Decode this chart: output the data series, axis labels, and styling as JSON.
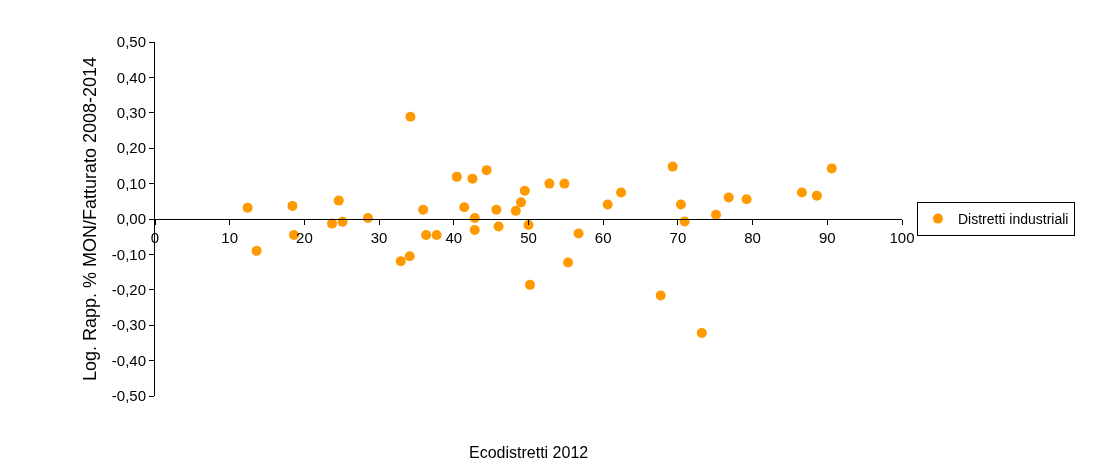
{
  "chart_data": {
    "type": "scatter",
    "xlabel": "Ecodistretti 2012",
    "ylabel": "Log. Rapp. % MON/Fatturato 2008-2014",
    "xlim": [
      0,
      100
    ],
    "xticks": [
      0,
      10,
      20,
      30,
      40,
      50,
      60,
      70,
      80,
      90,
      100
    ],
    "ylim": [
      -0.5,
      0.5
    ],
    "yticks": [
      {
        "value": -0.5,
        "label": "-0,50"
      },
      {
        "value": -0.4,
        "label": "-0,40"
      },
      {
        "value": -0.3,
        "label": "-0,30"
      },
      {
        "value": -0.2,
        "label": "-0,20"
      },
      {
        "value": -0.1,
        "label": "-0,10"
      },
      {
        "value": 0,
        "label": "0,00"
      },
      {
        "value": 0.1,
        "label": "0,10"
      },
      {
        "value": 0.2,
        "label": "0,20"
      },
      {
        "value": 0.3,
        "label": "0,30"
      },
      {
        "value": 0.4,
        "label": "0,40"
      },
      {
        "value": 0.5,
        "label": "0,50"
      }
    ],
    "grid": false,
    "legend": "right",
    "marker": "circle",
    "series": [
      {
        "name": "Distretti industriali",
        "color": "#ff9900",
        "x": [
          12.4,
          13.6,
          18.4,
          18.6,
          24.6,
          23.7,
          25.1,
          28.5,
          34.2,
          35.9,
          36.3,
          37.7,
          32.9,
          34.1,
          40.4,
          42.5,
          44.4,
          41.4,
          42.8,
          42.8,
          45.7,
          46.0,
          48.3,
          49.0,
          49.5,
          50.0,
          50.2,
          52.8,
          54.8,
          55.3,
          56.7,
          60.6,
          62.4,
          67.7,
          69.3,
          70.4,
          70.9,
          73.2,
          75.1,
          76.8,
          79.2,
          86.6,
          88.6,
          90.6
        ],
        "values": [
          0.032,
          -0.09,
          0.037,
          -0.045,
          0.052,
          -0.013,
          -0.008,
          0.003,
          0.289,
          0.026,
          -0.045,
          -0.045,
          -0.119,
          -0.105,
          0.119,
          0.114,
          0.138,
          0.033,
          0.003,
          -0.031,
          0.026,
          -0.021,
          0.023,
          0.047,
          0.08,
          -0.017,
          -0.186,
          0.1,
          0.1,
          -0.123,
          -0.041,
          0.041,
          0.075,
          -0.216,
          0.148,
          0.041,
          -0.007,
          -0.322,
          0.012,
          0.061,
          0.056,
          0.075,
          0.066,
          0.143
        ]
      }
    ]
  }
}
